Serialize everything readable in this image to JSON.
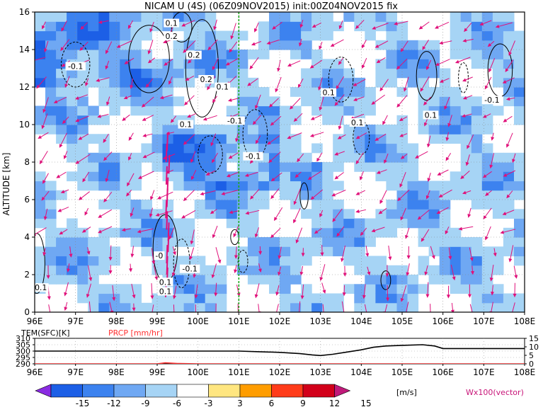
{
  "title": "NICAM U (4S) (06Z09NOV2015) init:00Z04NOV2015 fix",
  "chart_data": [
    {
      "type": "heatmap",
      "panel": "main",
      "variable": "U",
      "ylabel": "ALTITUDE [km]",
      "xlabel": "",
      "x_ticks": [
        "96E",
        "97E",
        "98E",
        "99E",
        "100E",
        "101E",
        "102E",
        "103E",
        "104E",
        "105E",
        "106E",
        "107E",
        "108E"
      ],
      "y_ticks": [
        "0",
        "2",
        "4",
        "6",
        "8",
        "10",
        "12",
        "14",
        "16"
      ],
      "xlim": [
        96,
        108
      ],
      "ylim": [
        0,
        16
      ],
      "marker_longitude": 101,
      "contour_labels": [
        {
          "text": "0.1",
          "lon": 99.35,
          "alt": 15.3
        },
        {
          "text": "0.2",
          "lon": 99.35,
          "alt": 14.6
        },
        {
          "text": "0.2",
          "lon": 99.9,
          "alt": 13.6
        },
        {
          "text": "-0.1",
          "lon": 97.0,
          "alt": 13.0
        },
        {
          "text": "0.2",
          "lon": 100.2,
          "alt": 12.3
        },
        {
          "text": "0.1",
          "lon": 100.6,
          "alt": 11.9
        },
        {
          "text": "0.1",
          "lon": 103.2,
          "alt": 11.6
        },
        {
          "text": "-0.1",
          "lon": 107.2,
          "alt": 11.2
        },
        {
          "text": "0.1",
          "lon": 105.7,
          "alt": 10.4
        },
        {
          "text": "0.1",
          "lon": 103.9,
          "alt": 10.0
        },
        {
          "text": "0.1",
          "lon": 99.7,
          "alt": 9.9
        },
        {
          "text": "-0.1",
          "lon": 100.9,
          "alt": 10.1
        },
        {
          "text": "-0.1",
          "lon": 101.35,
          "alt": 8.2
        },
        {
          "text": "-0.1",
          "lon": 99.8,
          "alt": 2.2
        },
        {
          "text": "-0",
          "lon": 99.05,
          "alt": 2.9
        },
        {
          "text": "0.1",
          "lon": 96.15,
          "alt": 1.2
        },
        {
          "text": "0.1",
          "lon": 99.2,
          "alt": 1.5
        },
        {
          "text": "0.1",
          "lon": 99.2,
          "alt": 1.0
        }
      ]
    },
    {
      "type": "line",
      "panel": "bottom",
      "series": [
        {
          "name": "TEM(SFC)[K]",
          "color": "#000000",
          "x": [
            96,
            97,
            98,
            99,
            100,
            101,
            101.5,
            102,
            102.5,
            102.8,
            103,
            103.3,
            103.6,
            104,
            104.3,
            104.6,
            105,
            105.5,
            105.8,
            106,
            106.5,
            107,
            107.5,
            108
          ],
          "y": [
            300,
            300,
            300,
            300,
            300,
            300,
            299.5,
            299,
            298,
            297,
            296.5,
            297.5,
            299,
            301,
            303,
            304,
            304.5,
            305,
            304,
            302,
            302,
            302,
            302,
            302
          ]
        },
        {
          "name": "PRCP [mm/hr]",
          "color": "#ff3030",
          "x": [
            96,
            99,
            99.2,
            99.5,
            100,
            108
          ],
          "y": [
            0,
            0,
            0.6,
            0.2,
            0,
            0
          ]
        }
      ],
      "y_ticks_left": [
        "310",
        "305",
        "300",
        "295",
        "290"
      ],
      "y_ticks_right": [
        "15",
        "10",
        "5",
        "0"
      ],
      "x_ticks": [
        "96E",
        "97E",
        "98E",
        "99E",
        "100E",
        "101E",
        "102E",
        "103E",
        "104E",
        "105E",
        "106E",
        "107E",
        "108E"
      ]
    }
  ],
  "colorbar": {
    "ticks": [
      "-15",
      "-12",
      "-9",
      "-6",
      "-3",
      "3",
      "6",
      "9",
      "12",
      "15"
    ],
    "units": "[m/s]",
    "colors": [
      "#8a2be2",
      "#1c5fe6",
      "#3c82ef",
      "#6fa8f3",
      "#a6d4f5",
      "#ffffff",
      "#ffe680",
      "#ff9d00",
      "#ff3c1a",
      "#d2001a",
      "#c01a7a"
    ]
  },
  "vector_note": "Wx100(vector)"
}
